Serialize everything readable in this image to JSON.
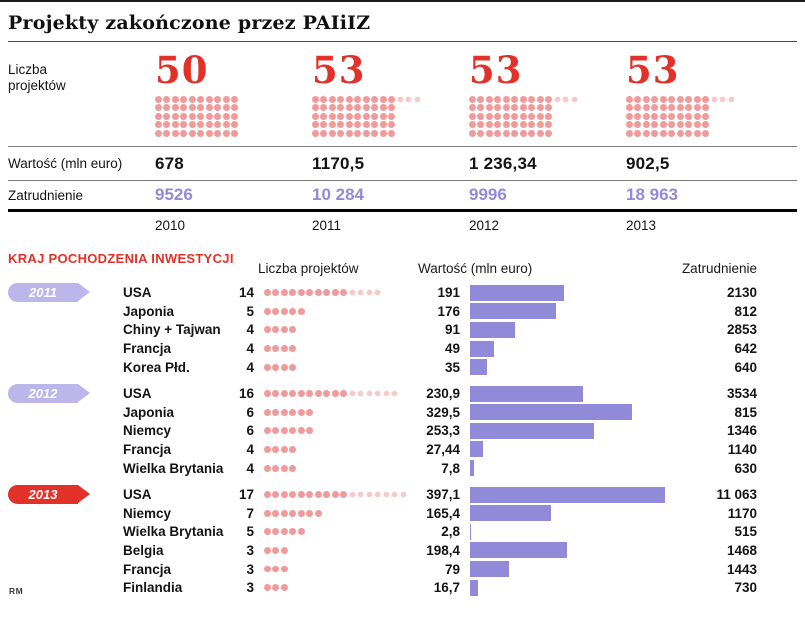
{
  "title": "Projekty zakończone przez PAIiIZ",
  "credit": "RM",
  "colors": {
    "accent_red": "#e23128",
    "dot_pink": "#ef9a9b",
    "dot_pink_light": "#f7c9ca",
    "bar_purple": "#918ad9",
    "ribbon_purple": "#bcb6ea"
  },
  "chart_data": [
    {
      "type": "table",
      "name": "summary-by-year",
      "title": "Projekty zakończone przez PAIiIZ",
      "row_labels": {
        "projects": "Liczba projektów",
        "value": "Wartość (mln euro)",
        "employment": "Zatrudnienie"
      },
      "years": [
        "2010",
        "2011",
        "2012",
        "2013"
      ],
      "projects": [
        50,
        53,
        53,
        53
      ],
      "values_mln_euro": [
        "678",
        "1170,5",
        "1 236,34",
        "902,5"
      ],
      "employment": [
        "9526",
        "10 284",
        "9996",
        "18 963"
      ]
    },
    {
      "type": "bar",
      "name": "country-of-origin",
      "title": "KRAJ POCHODZENIA INWESTYCJI",
      "col_headers": [
        "Liczba projektów",
        "Wartość (mln euro)",
        "Zatrudnienie"
      ],
      "bar_axis_max": 400,
      "groups": [
        {
          "year": "2011",
          "highlight": false,
          "rows": [
            {
              "country": "USA",
              "projects": 14,
              "value_label": "191",
              "value": 191,
              "employment": "2130"
            },
            {
              "country": "Japonia",
              "projects": 5,
              "value_label": "176",
              "value": 176,
              "employment": "812"
            },
            {
              "country": "Chiny + Tajwan",
              "projects": 4,
              "value_label": "91",
              "value": 91,
              "employment": "2853"
            },
            {
              "country": "Francja",
              "projects": 4,
              "value_label": "49",
              "value": 49,
              "employment": "642"
            },
            {
              "country": "Korea Płd.",
              "projects": 4,
              "value_label": "35",
              "value": 35,
              "employment": "640"
            }
          ]
        },
        {
          "year": "2012",
          "highlight": false,
          "rows": [
            {
              "country": "USA",
              "projects": 16,
              "value_label": "230,9",
              "value": 230.9,
              "employment": "3534"
            },
            {
              "country": "Japonia",
              "projects": 6,
              "value_label": "329,5",
              "value": 329.5,
              "employment": "815"
            },
            {
              "country": "Niemcy",
              "projects": 6,
              "value_label": "253,3",
              "value": 253.3,
              "employment": "1346"
            },
            {
              "country": "Francja",
              "projects": 4,
              "value_label": "27,44",
              "value": 27.44,
              "employment": "1140"
            },
            {
              "country": "Wielka Brytania",
              "projects": 4,
              "value_label": "7,8",
              "value": 7.8,
              "employment": "630"
            }
          ]
        },
        {
          "year": "2013",
          "highlight": true,
          "rows": [
            {
              "country": "USA",
              "projects": 17,
              "value_label": "397,1",
              "value": 397.1,
              "employment": "11 063"
            },
            {
              "country": "Niemcy",
              "projects": 7,
              "value_label": "165,4",
              "value": 165.4,
              "employment": "1170"
            },
            {
              "country": "Wielka Brytania",
              "projects": 5,
              "value_label": "2,8",
              "value": 2.8,
              "employment": "515"
            },
            {
              "country": "Belgia",
              "projects": 3,
              "value_label": "198,4",
              "value": 198.4,
              "employment": "1468"
            },
            {
              "country": "Francja",
              "projects": 3,
              "value_label": "79",
              "value": 79,
              "employment": "1443"
            },
            {
              "country": "Finlandia",
              "projects": 3,
              "value_label": "16,7",
              "value": 16.7,
              "employment": "730"
            }
          ]
        }
      ]
    }
  ]
}
